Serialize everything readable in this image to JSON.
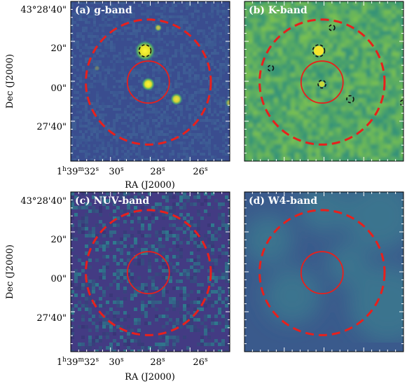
{
  "figure": {
    "panels": [
      {
        "id": "a",
        "label": "(a) g-band",
        "colors": {
          "bg": "#3a4d8f",
          "noise_lo": "#33468a",
          "noise_hi": "#3f5f96"
        },
        "texture": "fine"
      },
      {
        "id": "b",
        "label": "(b) K-band",
        "colors": {
          "bg": "#3fa06d",
          "noise_lo": "#2e8f7a",
          "noise_hi": "#7cc24f"
        },
        "texture": "blotchy"
      },
      {
        "id": "c",
        "label": "(c) NUV-band",
        "colors": {
          "bg": "#433b83",
          "noise_lo": "#3a3478",
          "noise_hi": "#2f7a8e"
        },
        "texture": "pixel"
      },
      {
        "id": "d",
        "label": "(d) W4-band",
        "colors": {
          "bg": "#3a5a8c",
          "noise_lo": "#36508a",
          "noise_hi": "#3c7a8e"
        },
        "texture": "smooth"
      }
    ],
    "ra_axis": {
      "title": "RA (J2000)",
      "ticks": [
        {
          "main": "1",
          "sup1": "h",
          "mid": "39",
          "sup2": "m",
          "rest": "32",
          "sup3": "s"
        },
        {
          "main": "30",
          "sup1": "s"
        },
        {
          "main": "28",
          "sup1": "s"
        },
        {
          "main": "26",
          "sup1": "s"
        }
      ]
    },
    "dec_axis": {
      "title": "Dec (J2000)",
      "ticks": [
        "43°28'40\"",
        "20\"",
        "00\"",
        "27'40\""
      ]
    },
    "apertures": {
      "inner_color": "#e8201c",
      "outer_color": "#e8201c",
      "outer_style": "dashed"
    },
    "stars_g": [
      {
        "name": "star-upper",
        "brightness": 0.7
      },
      {
        "name": "star-masked-bright",
        "brightness": 1.0
      },
      {
        "name": "star-left-small",
        "brightness": 0.3
      },
      {
        "name": "star-center",
        "brightness": 1.0
      },
      {
        "name": "star-right",
        "brightness": 0.9
      },
      {
        "name": "star-edge-right",
        "brightness": 0.6
      }
    ],
    "masks_k": [
      {
        "name": "mask-upper"
      },
      {
        "name": "mask-bright"
      },
      {
        "name": "mask-left"
      },
      {
        "name": "mask-center"
      },
      {
        "name": "mask-right"
      },
      {
        "name": "mask-edge"
      }
    ]
  }
}
